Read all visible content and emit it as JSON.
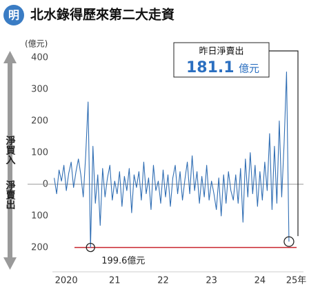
{
  "logo": "明",
  "chart_data": {
    "type": "line",
    "title": "北水錄得歷來第二大走資",
    "y_unit": "(億元)",
    "y_up_label": "淨買入",
    "y_down_label": "淨賣出",
    "x": [
      2020.25,
      2020.3,
      2020.35,
      2020.4,
      2020.45,
      2020.5,
      2020.55,
      2020.6,
      2020.65,
      2020.7,
      2020.75,
      2020.8,
      2020.85,
      2020.9,
      2020.95,
      2021,
      2021.05,
      2021.1,
      2021.15,
      2021.2,
      2021.25,
      2021.3,
      2021.35,
      2021.4,
      2021.45,
      2021.5,
      2021.55,
      2021.6,
      2021.65,
      2021.7,
      2021.75,
      2021.8,
      2021.85,
      2021.9,
      2021.95,
      2022,
      2022.05,
      2022.1,
      2022.15,
      2022.2,
      2022.25,
      2022.3,
      2022.35,
      2022.4,
      2022.45,
      2022.5,
      2022.55,
      2022.6,
      2022.65,
      2022.7,
      2022.75,
      2022.8,
      2022.85,
      2022.9,
      2022.95,
      2023,
      2023.05,
      2023.1,
      2023.15,
      2023.2,
      2023.25,
      2023.3,
      2023.35,
      2023.4,
      2023.45,
      2023.5,
      2023.55,
      2023.6,
      2023.65,
      2023.7,
      2023.75,
      2023.8,
      2023.85,
      2023.9,
      2023.95,
      2024,
      2024.05,
      2024.1,
      2024.15,
      2024.2,
      2024.25,
      2024.3,
      2024.35,
      2024.4,
      2024.45,
      2024.5,
      2024.55,
      2024.6,
      2024.65,
      2024.7,
      2024.75,
      2024.8,
      2024.85,
      2024.9,
      2024.95,
      2025,
      2025.05,
      2025.1
    ],
    "series": [
      {
        "color": "#2f6db3",
        "values": [
          20,
          -30,
          45,
          10,
          60,
          -20,
          35,
          70,
          -10,
          40,
          80,
          30,
          -40,
          90,
          260,
          -199.6,
          120,
          -60,
          30,
          -130,
          50,
          -40,
          20,
          60,
          -50,
          10,
          -30,
          40,
          -70,
          25,
          -20,
          50,
          -90,
          30,
          -10,
          40,
          -50,
          70,
          -30,
          20,
          -80,
          60,
          -20,
          10,
          -60,
          45,
          -40,
          30,
          -70,
          20,
          60,
          -30,
          40,
          -50,
          15,
          70,
          -30,
          90,
          -20,
          40,
          -60,
          25,
          -40,
          60,
          -50,
          10,
          -30,
          -80,
          20,
          -100,
          30,
          -60,
          40,
          -20,
          -50,
          30,
          -60,
          50,
          -120,
          80,
          -40,
          100,
          -30,
          60,
          -70,
          40,
          -50,
          70,
          -20,
          160,
          -80,
          120,
          -60,
          200,
          -40,
          130,
          355,
          -181.1
        ]
      }
    ],
    "xlim": [
      2019.7,
      2025.4
    ],
    "ylim": [
      -270,
      430
    ],
    "xticks": [
      {
        "value": 2020.5,
        "label": "2020"
      },
      {
        "value": 2021.5,
        "label": "21"
      },
      {
        "value": 2022.5,
        "label": "22"
      },
      {
        "value": 2023.5,
        "label": "23"
      },
      {
        "value": 2024.5,
        "label": "24"
      },
      {
        "value": 2025.25,
        "label": "25年"
      }
    ],
    "yticks": [
      400,
      300,
      200,
      100,
      0,
      {
        "value": -100,
        "label": "100"
      },
      {
        "value": -200,
        "label": "200"
      }
    ],
    "grid": false,
    "reference_line": {
      "value": -199.6,
      "label": "199.6億元",
      "color": "#c8232c",
      "x": 2021
    },
    "callout": {
      "title": "昨日淨賣出",
      "value": -181.1,
      "label": "181.1",
      "unit": "億元",
      "x": 2025.1
    }
  }
}
